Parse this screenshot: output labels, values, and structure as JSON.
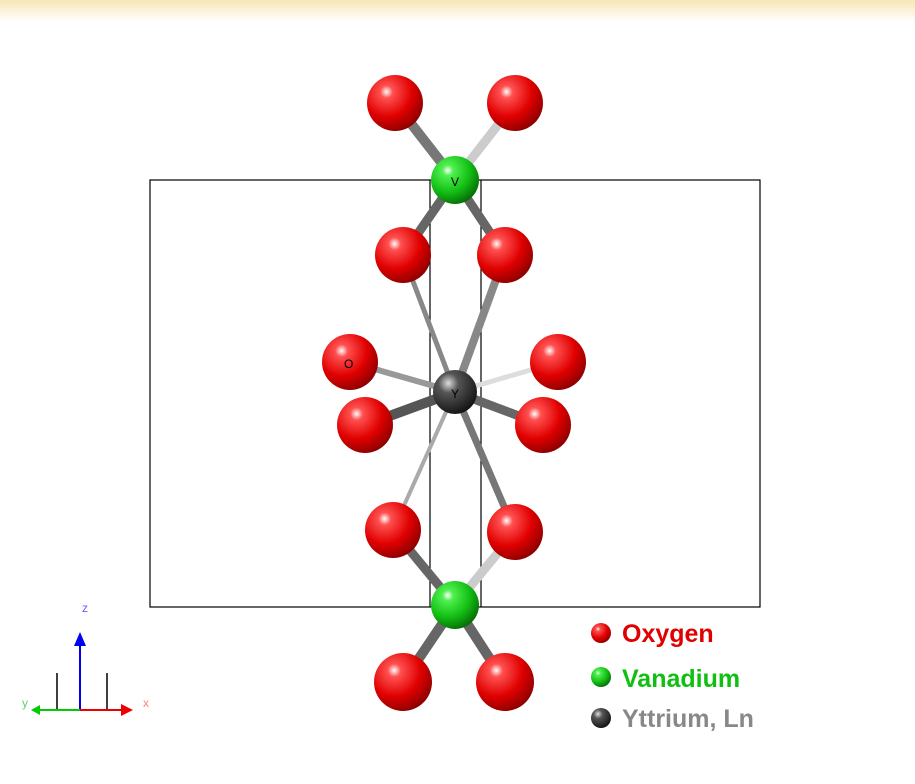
{
  "structure": {
    "atom_labels": {
      "oxygen": "O",
      "vanadium": "V",
      "yttrium": "Y"
    },
    "axes": {
      "z": "z",
      "x": "x",
      "y": "y"
    },
    "legend": [
      "Oxygen",
      "Vanadium",
      "Yttrium, Ln"
    ]
  }
}
